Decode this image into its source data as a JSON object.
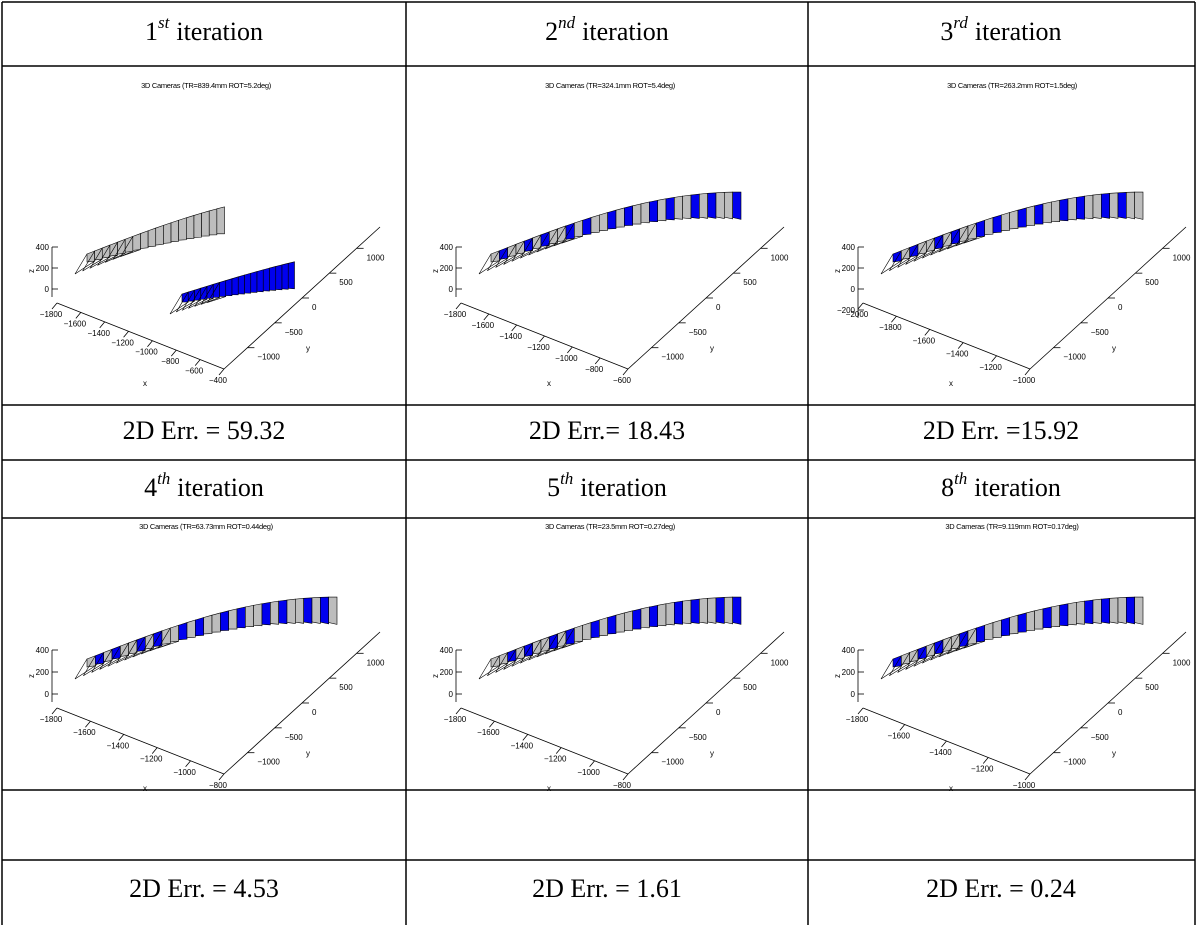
{
  "panels": [
    {
      "header": {
        "number": "1",
        "suffix": "st",
        "word": "iteration"
      },
      "plot": {
        "title": "3D Cameras (TR=839.4mm ROT=5.2deg)",
        "z_label": "z",
        "x_label": "x",
        "y_label": "y",
        "z_ticks": [
          "400",
          "200",
          "0"
        ],
        "x_ticks": [
          "−1800",
          "−1600",
          "−1400",
          "−1200",
          "−1000",
          "−800",
          "−600",
          "−400"
        ],
        "y_ticks": [
          "1000",
          "500",
          "0",
          "−500",
          "−1000"
        ]
      },
      "error": "2D Err. = 59.32"
    },
    {
      "header": {
        "number": "2",
        "suffix": "nd",
        "word": "iteration"
      },
      "plot": {
        "title": "3D Cameras (TR=324.1mm ROT=5.4deg)",
        "z_label": "z",
        "x_label": "x",
        "y_label": "y",
        "z_ticks": [
          "400",
          "200",
          "0"
        ],
        "x_ticks": [
          "−1800",
          "−1600",
          "−1400",
          "−1200",
          "−1000",
          "−800",
          "−600"
        ],
        "y_ticks": [
          "1000",
          "500",
          "0",
          "−500",
          "−1000"
        ]
      },
      "error": "2D Err.= 18.43"
    },
    {
      "header": {
        "number": "3",
        "suffix": "rd",
        "word": "iteration"
      },
      "plot": {
        "title": "3D Cameras (TR=263.2mm ROT=1.5deg)",
        "z_label": "z",
        "x_label": "x",
        "y_label": "y",
        "z_ticks": [
          "400",
          "200",
          "0",
          "−200"
        ],
        "x_ticks": [
          "−2000",
          "−1800",
          "−1600",
          "−1400",
          "−1200",
          "−1000"
        ],
        "y_ticks": [
          "1000",
          "500",
          "0",
          "−500",
          "−1000"
        ]
      },
      "error": "2D Err. =15.92"
    },
    {
      "header": {
        "number": "4",
        "suffix": "th",
        "word": "iteration"
      },
      "plot": {
        "title": "3D Cameras (TR=63.73mm ROT=0.44deg)",
        "z_label": "z",
        "x_label": "x",
        "y_label": "y",
        "z_ticks": [
          "400",
          "200",
          "0"
        ],
        "x_ticks": [
          "−1800",
          "−1600",
          "−1400",
          "−1200",
          "−1000",
          "−800"
        ],
        "y_ticks": [
          "1000",
          "500",
          "0",
          "−500",
          "−1000"
        ]
      },
      "error": "2D Err. = 4.53"
    },
    {
      "header": {
        "number": "5",
        "suffix": "th",
        "word": "iteration"
      },
      "plot": {
        "title": "3D Cameras (TR=23.5mm ROT=0.27deg)",
        "z_label": "z",
        "x_label": "x",
        "y_label": "y",
        "z_ticks": [
          "400",
          "200",
          "0"
        ],
        "x_ticks": [
          "−1800",
          "−1600",
          "−1400",
          "−1200",
          "−1000",
          "−800"
        ],
        "y_ticks": [
          "1000",
          "500",
          "0",
          "−500",
          "−1000"
        ]
      },
      "error": "2D Err. = 1.61"
    },
    {
      "header": {
        "number": "8",
        "suffix": "th",
        "word": "iteration"
      },
      "plot": {
        "title": "3D Cameras (TR=9.119mm ROT=0.17deg)",
        "z_label": "z",
        "x_label": "x",
        "y_label": "y",
        "z_ticks": [
          "400",
          "200",
          "0"
        ],
        "x_ticks": [
          "−1800",
          "−1600",
          "−1400",
          "−1200",
          "−1000"
        ],
        "y_ticks": [
          "1000",
          "500",
          "0",
          "−500",
          "−1000"
        ]
      },
      "error": "2D Err. = 0.24"
    }
  ]
}
